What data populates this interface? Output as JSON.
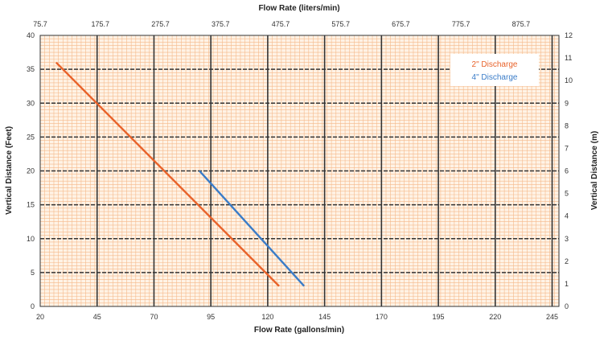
{
  "chart_data": {
    "type": "line",
    "title": "",
    "xlabel": "Flow Rate (gallons/min)",
    "x2label": "Flow Rate (liters/min)",
    "ylabel": "Vertical Distance (Feet)",
    "y2label": "Vertical Distance (m)",
    "xlim": [
      20,
      248
    ],
    "ylim": [
      0,
      40
    ],
    "x2lim": [
      75.7,
      938.7
    ],
    "y2lim": [
      0,
      12
    ],
    "x_ticks": [
      "20",
      "45",
      "70",
      "95",
      "120",
      "145",
      "170",
      "195",
      "220",
      "245"
    ],
    "y_ticks": [
      "0",
      "5",
      "10",
      "15",
      "20",
      "25",
      "30",
      "35",
      "40"
    ],
    "x2_ticks": [
      "75.7",
      "175.7",
      "275.7",
      "375.7",
      "475.7",
      "575.7",
      "675.7",
      "775.7",
      "875.7"
    ],
    "y2_ticks": [
      "0",
      "1",
      "2",
      "3",
      "4",
      "5",
      "6",
      "7",
      "8",
      "9",
      "10",
      "11",
      "12"
    ],
    "grid": true,
    "legend_position": "top-right",
    "series": [
      {
        "name": "2\" Discharge",
        "color": "#e8622a",
        "points": [
          [
            27,
            36
          ],
          [
            125,
            3
          ]
        ]
      },
      {
        "name": "4\" Discharge",
        "color": "#3a7cc8",
        "points": [
          [
            90,
            20
          ],
          [
            136,
            3
          ]
        ]
      }
    ],
    "colors": {
      "major_grid": "#333333",
      "minor_grid": "#f5b98a",
      "background": "#fff3e6"
    }
  }
}
